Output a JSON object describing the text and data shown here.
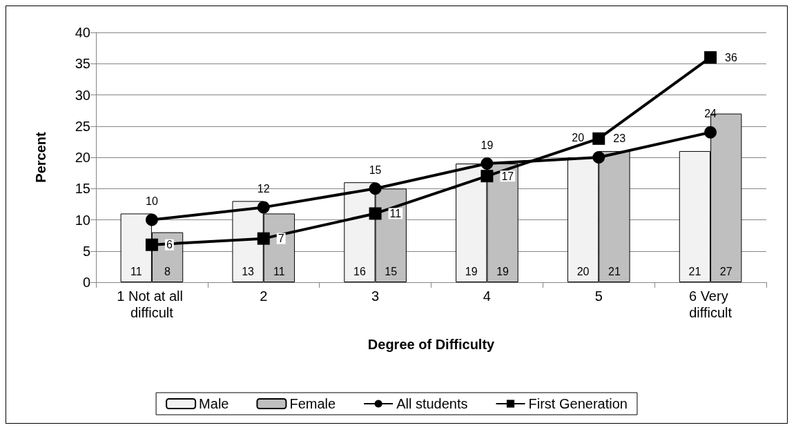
{
  "chart_data": {
    "type": "bar",
    "xlabel": "Degree of Difficulty",
    "ylabel": "Percent",
    "categories": [
      "1 Not at all difficult",
      "2",
      "3",
      "4",
      "5",
      "6 Very difficult"
    ],
    "series": [
      {
        "name": "Male",
        "color": "#f2f2f2",
        "values": [
          11,
          13,
          16,
          19,
          20,
          21
        ]
      },
      {
        "name": "Female",
        "color": "#bfbfbf",
        "values": [
          8,
          11,
          15,
          19,
          21,
          27
        ]
      },
      {
        "name": "All students",
        "type": "line",
        "color": "#000000",
        "marker": "circle",
        "values": [
          10,
          12,
          15,
          19,
          20,
          24
        ]
      },
      {
        "name": "First Generation",
        "type": "line",
        "color": "#000000",
        "marker": "square",
        "values": [
          6,
          7,
          11,
          17,
          23,
          36
        ]
      }
    ],
    "ylim": [
      0,
      40
    ],
    "yticks": [
      0,
      5,
      10,
      15,
      20,
      25,
      30,
      35,
      40
    ],
    "grid": "y",
    "legend": "bottom",
    "data_labels": true,
    "line_style": "solid"
  }
}
